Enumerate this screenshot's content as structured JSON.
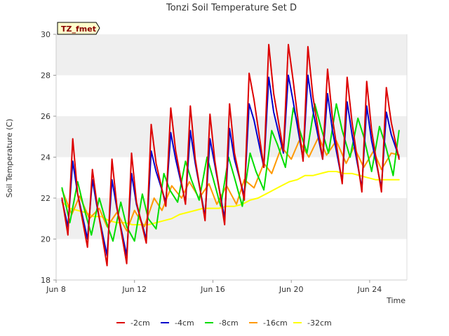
{
  "chart_data": {
    "type": "line",
    "title": "Tonzi Soil Temperature Set D",
    "xlabel": "Time",
    "ylabel": "Soil Temperature (C)",
    "badge": "TZ_fmet",
    "xlim": [
      8,
      25.9
    ],
    "ylim": [
      18,
      30
    ],
    "yticks": [
      18,
      20,
      22,
      24,
      26,
      28,
      30
    ],
    "xticks": [
      {
        "value": 8,
        "label": "Jun 8"
      },
      {
        "value": 12,
        "label": "Jun 12"
      },
      {
        "value": 16,
        "label": "Jun 16"
      },
      {
        "value": 20,
        "label": "Jun 20"
      },
      {
        "value": 24,
        "label": "Jun 24"
      }
    ],
    "grid": "horizontal bands",
    "legend": "bottom",
    "series": [
      {
        "name": "-2cm",
        "color": "#dd0000",
        "x": [
          8.3,
          8.6,
          8.85,
          9.1,
          9.6,
          9.85,
          10.1,
          10.6,
          10.85,
          11.1,
          11.6,
          11.85,
          12.1,
          12.6,
          12.85,
          13.1,
          13.6,
          13.85,
          14.1,
          14.6,
          14.85,
          15.1,
          15.6,
          15.85,
          16.1,
          16.6,
          16.85,
          17.1,
          17.6,
          17.85,
          18.1,
          18.6,
          18.85,
          19.1,
          19.6,
          19.85,
          20.1,
          20.6,
          20.85,
          21.1,
          21.6,
          21.85,
          22.1,
          22.6,
          22.85,
          23.1,
          23.6,
          23.85,
          24.1,
          24.6,
          24.85,
          25.1,
          25.5
        ],
        "y": [
          22.0,
          20.2,
          24.9,
          22.2,
          19.6,
          23.4,
          21.6,
          18.7,
          23.9,
          21.6,
          18.8,
          24.2,
          21.8,
          19.8,
          25.6,
          23.7,
          21.6,
          26.4,
          24.3,
          21.7,
          26.5,
          23.9,
          20.9,
          26.1,
          23.8,
          20.7,
          26.6,
          24.2,
          21.9,
          28.1,
          26.8,
          23.5,
          29.5,
          27.1,
          24.3,
          29.5,
          27.7,
          23.8,
          29.4,
          27.0,
          23.9,
          28.3,
          25.9,
          22.7,
          27.9,
          25.7,
          22.3,
          27.7,
          25.3,
          22.3,
          27.4,
          25.7,
          23.9
        ]
      },
      {
        "name": "-4cm",
        "color": "#0000cc",
        "x": [
          8.3,
          8.6,
          8.85,
          9.1,
          9.6,
          9.85,
          10.1,
          10.6,
          10.85,
          11.1,
          11.6,
          11.85,
          12.1,
          12.6,
          12.85,
          13.1,
          13.6,
          13.85,
          14.1,
          14.6,
          14.85,
          15.1,
          15.6,
          15.85,
          16.1,
          16.6,
          16.85,
          17.1,
          17.6,
          17.85,
          18.1,
          18.6,
          18.85,
          19.1,
          19.6,
          19.85,
          20.1,
          20.6,
          20.85,
          21.1,
          21.6,
          21.85,
          22.1,
          22.6,
          22.85,
          23.1,
          23.6,
          23.85,
          24.1,
          24.6,
          24.85,
          25.1,
          25.5
        ],
        "y": [
          21.9,
          20.6,
          23.8,
          22.2,
          20.0,
          22.9,
          21.5,
          19.2,
          22.9,
          21.5,
          19.2,
          23.2,
          21.7,
          20.0,
          24.3,
          23.3,
          21.8,
          25.2,
          23.9,
          21.8,
          25.3,
          23.7,
          21.1,
          24.9,
          23.6,
          21.0,
          25.4,
          23.9,
          22.1,
          26.6,
          25.8,
          23.5,
          27.9,
          26.2,
          24.2,
          28.0,
          26.7,
          23.9,
          28.0,
          26.3,
          23.9,
          27.1,
          25.3,
          22.8,
          26.7,
          25.1,
          22.5,
          26.5,
          24.8,
          22.5,
          26.2,
          25.1,
          24.0
        ]
      },
      {
        "name": "-8cm",
        "color": "#00dd00",
        "x": [
          8.3,
          8.7,
          9.1,
          9.4,
          9.8,
          10.2,
          10.5,
          10.9,
          11.3,
          11.6,
          12.0,
          12.4,
          12.7,
          13.1,
          13.5,
          13.8,
          14.2,
          14.6,
          14.9,
          15.3,
          15.7,
          16.0,
          16.4,
          16.8,
          17.1,
          17.5,
          17.9,
          18.2,
          18.6,
          19.0,
          19.3,
          19.7,
          20.1,
          20.4,
          20.8,
          21.2,
          21.5,
          21.9,
          22.3,
          22.6,
          23.0,
          23.4,
          23.7,
          24.1,
          24.5,
          24.8,
          25.2,
          25.5
        ],
        "y": [
          22.5,
          20.8,
          22.8,
          21.6,
          20.2,
          22.0,
          21.0,
          19.9,
          21.8,
          20.6,
          19.9,
          22.2,
          21.0,
          20.5,
          23.2,
          22.4,
          21.8,
          23.8,
          22.9,
          21.9,
          24.0,
          23.0,
          21.6,
          24.0,
          23.0,
          21.6,
          24.2,
          23.3,
          22.4,
          25.3,
          24.6,
          23.5,
          26.4,
          25.4,
          24.2,
          26.6,
          25.5,
          24.2,
          26.6,
          25.3,
          24.0,
          25.9,
          25.0,
          23.3,
          25.5,
          24.6,
          23.1,
          25.3
        ]
      },
      {
        "name": "-16cm",
        "color": "#ff9900",
        "x": [
          8.3,
          8.8,
          9.2,
          9.7,
          10.2,
          10.6,
          11.1,
          11.6,
          12.0,
          12.5,
          13.0,
          13.4,
          13.9,
          14.4,
          14.8,
          15.3,
          15.8,
          16.2,
          16.7,
          17.2,
          17.6,
          18.1,
          18.6,
          19.0,
          19.5,
          20.0,
          20.4,
          20.9,
          21.4,
          21.8,
          22.3,
          22.8,
          23.2,
          23.7,
          24.2,
          24.6,
          25.1,
          25.5
        ],
        "y": [
          22.4,
          21.2,
          22.1,
          21.0,
          21.5,
          20.6,
          21.3,
          20.4,
          21.4,
          20.6,
          22.0,
          21.4,
          22.6,
          22.0,
          22.8,
          22.0,
          22.7,
          21.7,
          22.6,
          21.7,
          22.9,
          22.5,
          23.7,
          23.2,
          24.5,
          23.9,
          24.8,
          24.0,
          25.0,
          24.1,
          24.8,
          23.7,
          24.5,
          23.5,
          24.3,
          23.4,
          24.2,
          24.1
        ]
      },
      {
        "name": "-32cm",
        "color": "#ffff00",
        "x": [
          8.3,
          8.7,
          9.1,
          9.5,
          9.9,
          10.3,
          10.7,
          11.1,
          11.5,
          11.9,
          12.3,
          12.7,
          13.1,
          13.5,
          13.9,
          14.3,
          14.7,
          15.1,
          15.5,
          15.9,
          16.3,
          16.7,
          17.1,
          17.5,
          17.9,
          18.3,
          18.7,
          19.1,
          19.5,
          19.9,
          20.3,
          20.7,
          21.1,
          21.5,
          21.9,
          22.3,
          22.7,
          23.1,
          23.5,
          23.9,
          24.3,
          24.7,
          25.1,
          25.5
        ],
        "y": [
          21.8,
          21.5,
          21.4,
          21.3,
          21.1,
          21.1,
          20.9,
          20.8,
          20.8,
          20.7,
          20.7,
          20.7,
          20.8,
          20.9,
          21.0,
          21.2,
          21.3,
          21.4,
          21.5,
          21.5,
          21.5,
          21.6,
          21.6,
          21.7,
          21.9,
          22.0,
          22.2,
          22.4,
          22.6,
          22.8,
          22.9,
          23.1,
          23.1,
          23.2,
          23.3,
          23.3,
          23.2,
          23.2,
          23.1,
          23.0,
          22.9,
          22.9,
          22.9,
          22.9
        ]
      }
    ]
  }
}
